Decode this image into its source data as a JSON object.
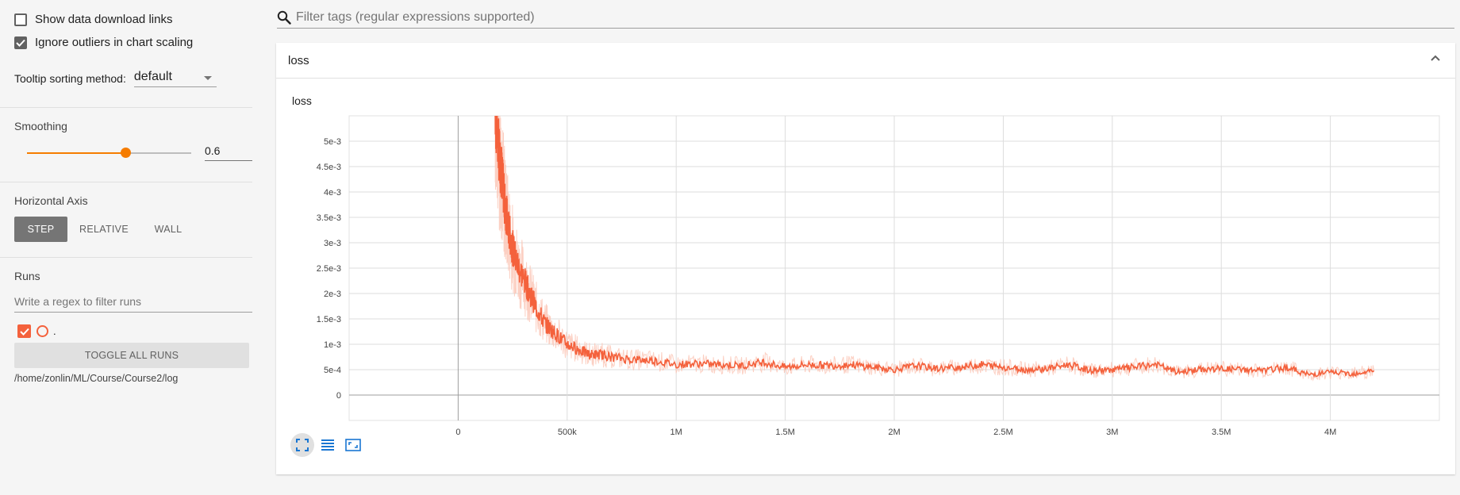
{
  "sidebar": {
    "show_download_label": "Show data download links",
    "ignore_outliers_label": "Ignore outliers in chart scaling",
    "tooltip_label": "Tooltip sorting method:",
    "tooltip_value": "default",
    "smoothing_title": "Smoothing",
    "smoothing_value": "0.6",
    "smoothing_fraction": 0.6,
    "horizontal_axis_title": "Horizontal Axis",
    "axis_buttons": [
      "STEP",
      "RELATIVE",
      "WALL"
    ],
    "runs_title": "Runs",
    "runs_filter_placeholder": "Write a regex to filter runs",
    "run_name": ".",
    "toggle_all_label": "TOGGLE ALL RUNS",
    "logdir": "/home/zonlin/ML/Course/Course2/log"
  },
  "main": {
    "filter_placeholder": "Filter tags (regular expressions supported)",
    "card_title": "loss",
    "chart_title": "loss"
  },
  "colors": {
    "accent": "#f57c00",
    "series": "#f4613c",
    "series_raw": "#fbc4b4"
  },
  "chart_data": {
    "type": "line",
    "title": "loss",
    "xlabel": "",
    "ylabel": "",
    "xlim": [
      -500000,
      4500000
    ],
    "ylim": [
      -0.0005,
      0.0055
    ],
    "x_ticks": [
      0,
      500000,
      1000000,
      1500000,
      2000000,
      2500000,
      3000000,
      3500000,
      4000000
    ],
    "x_tick_labels": [
      "0",
      "500k",
      "1M",
      "1.5M",
      "2M",
      "2.5M",
      "3M",
      "3.5M",
      "4M"
    ],
    "y_ticks": [
      0,
      0.0005,
      0.001,
      0.0015,
      0.002,
      0.0025,
      0.003,
      0.0035,
      0.004,
      0.0045,
      0.005
    ],
    "y_tick_labels": [
      "0",
      "5e-4",
      "1e-3",
      "1.5e-3",
      "2e-3",
      "2.5e-3",
      "3e-3",
      "3.5e-3",
      "4e-3",
      "4.5e-3",
      "5e-3"
    ],
    "grid": true,
    "series": [
      {
        "x": [
          170000,
          180000,
          190000,
          200000,
          210000,
          220000,
          230000,
          250000,
          270000,
          300000,
          330000,
          360000,
          400000,
          450000,
          500000,
          550000,
          600000,
          650000,
          700000,
          800000,
          900000,
          1000000,
          1100000,
          1200000,
          1300000,
          1400000,
          1500000,
          1600000,
          1700000,
          1800000,
          1900000,
          2000000,
          2100000,
          2200000,
          2300000,
          2400000,
          2500000,
          2600000,
          2700000,
          2800000,
          2900000,
          3000000,
          3100000,
          3200000,
          3300000,
          3400000,
          3500000,
          3600000,
          3700000,
          3800000,
          3900000,
          4000000,
          4100000,
          4200000
        ],
        "values": [
          0.0055,
          0.0052,
          0.0046,
          0.0044,
          0.0039,
          0.0036,
          0.0033,
          0.0029,
          0.0026,
          0.0023,
          0.002,
          0.0017,
          0.0014,
          0.0012,
          0.001,
          0.0009,
          0.0008,
          0.0008,
          0.00075,
          0.0007,
          0.00068,
          0.0006,
          0.00062,
          0.0006,
          0.00058,
          0.00065,
          0.00055,
          0.0006,
          0.00058,
          0.0006,
          0.00055,
          0.0005,
          0.00058,
          0.00052,
          0.00055,
          0.0006,
          0.00055,
          0.0005,
          0.00052,
          0.0006,
          0.00048,
          0.0005,
          0.00055,
          0.0006,
          0.00045,
          0.0005,
          0.00052,
          0.0005,
          0.00048,
          0.00055,
          0.0004,
          0.00045,
          0.00042,
          0.00048
        ]
      }
    ]
  }
}
